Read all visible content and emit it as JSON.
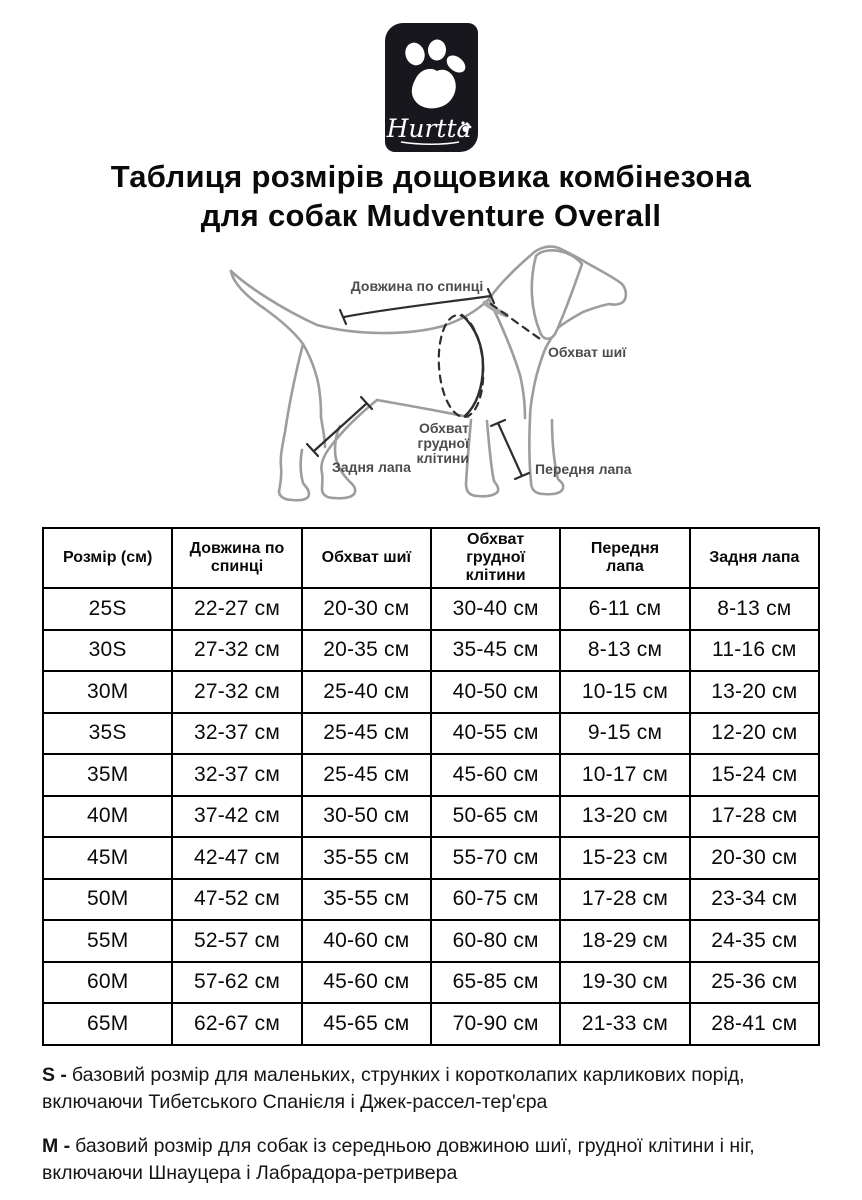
{
  "brand": {
    "logo_text": "Hurtta",
    "logo_background": "#17171d",
    "paw_color": "#ffffff"
  },
  "title": {
    "line1": "Таблиця розмірів дощовика комбінезона",
    "line2": "для собак Mudventure Overall"
  },
  "diagram": {
    "outline_color": "#9d9d9d",
    "measure_color": "#2e2e2e",
    "label_color": "#4c4c4e",
    "labels": {
      "back_length": "Довжина по спинці",
      "neck_girth": "Обхват шиї",
      "chest_girth": "Обхват грудної клітини",
      "front_paw": "Передня лапа",
      "hind_paw": "Задня лапа"
    }
  },
  "table": {
    "headers": [
      "Розмір (см)",
      "Довжина по\nспинці",
      "Обхват шиї",
      "Обхват грудної\nклітини",
      "Передня\nлапа",
      "Задня лапа"
    ],
    "rows": [
      [
        "25S",
        "22-27 см",
        "20-30 см",
        "30-40 см",
        "6-11 см",
        "8-13 см"
      ],
      [
        "30S",
        "27-32 см",
        "20-35 см",
        "35-45 см",
        "8-13 см",
        "11-16 см"
      ],
      [
        "30M",
        "27-32 см",
        "25-40 см",
        "40-50 см",
        "10-15 см",
        "13-20 см"
      ],
      [
        "35S",
        "32-37 см",
        "25-45 см",
        "40-55 см",
        "9-15 см",
        "12-20 см"
      ],
      [
        "35M",
        "32-37 см",
        "25-45 см",
        "45-60 см",
        "10-17 см",
        "15-24 см"
      ],
      [
        "40M",
        "37-42 см",
        "30-50 см",
        "50-65 см",
        "13-20 см",
        "17-28 см"
      ],
      [
        "45M",
        "42-47 см",
        "35-55 см",
        "55-70 см",
        "15-23 см",
        "20-30 см"
      ],
      [
        "50M",
        "47-52 см",
        "35-55 см",
        "60-75 см",
        "17-28 см",
        "23-34 см"
      ],
      [
        "55M",
        "52-57 см",
        "40-60 см",
        "60-80 см",
        "18-29 см",
        "24-35 см"
      ],
      [
        "60M",
        "57-62 см",
        "45-60 см",
        "65-85 см",
        "19-30 см",
        "25-36 см"
      ],
      [
        "65M",
        "62-67 см",
        "45-65 см",
        "70-90 см",
        "21-33 см",
        "28-41 см"
      ]
    ]
  },
  "notes": [
    {
      "prefix": "S -",
      "text": "базовий розмір для маленьких, струнких і коротколапих карликових порід, включаючи Тибетського Спанієля і Джек-рассел-тер'єра"
    },
    {
      "prefix": "M -",
      "text": "базовий розмір для собак із середньою довжиною шиї, грудної клітини і ніг, включаючи Шнауцера і Лабрадора-ретривера"
    }
  ]
}
